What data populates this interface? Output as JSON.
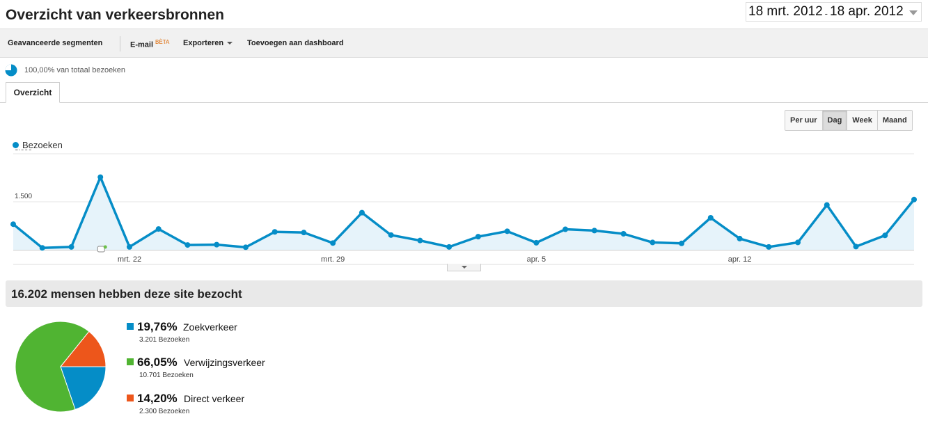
{
  "header": {
    "title": "Overzicht van verkeersbronnen",
    "date_start": "18 mrt. 2012",
    "date_sep": "-",
    "date_end": "18 apr. 2012"
  },
  "toolbar": {
    "segments_label": "Geavanceerde segmenten",
    "email_label": "E-mail",
    "email_badge": "BÈTA",
    "export_label": "Exporteren",
    "dashboard_label": "Toevoegen aan dashboard"
  },
  "segment": {
    "label": "100,00% van totaal bezoeken",
    "color": "#058dc7"
  },
  "tabs": [
    {
      "label": "Overzicht"
    }
  ],
  "granularity": {
    "buttons": [
      {
        "label": "Per uur"
      },
      {
        "label": "Dag"
      },
      {
        "label": "Week"
      },
      {
        "label": "Maand"
      }
    ],
    "active": "Dag"
  },
  "chart_data": {
    "type": "area",
    "series": [
      {
        "name": "Bezoeken",
        "color": "#058dc7",
        "values": [
          800,
          60,
          90,
          2270,
          90,
          650,
          150,
          160,
          80,
          560,
          540,
          210,
          1160,
          460,
          290,
          90,
          410,
          580,
          220,
          640,
          600,
          500,
          230,
          200,
          1000,
          350,
          90,
          230,
          1400,
          100,
          450,
          1570
        ]
      }
    ],
    "x_start_label": "18 mrt.",
    "x_tick_labels": [
      {
        "index": 4,
        "label": "mrt. 22"
      },
      {
        "index": 11,
        "label": "mrt. 29"
      },
      {
        "index": 18,
        "label": "apr. 5"
      },
      {
        "index": 25,
        "label": "apr. 12"
      }
    ],
    "y_ticks": [
      {
        "value": 1500,
        "label": "1.500"
      },
      {
        "value": 3000,
        "label": "3.000"
      }
    ],
    "ylim": [
      0,
      3000
    ],
    "annotation_index": 3,
    "legend_position": "top-left",
    "grid": true
  },
  "summary": {
    "text": "16.202 mensen hebben deze site bezocht"
  },
  "sources": [
    {
      "pct": "19,76%",
      "name": "Zoekverkeer",
      "visits": "3.201 Bezoeken",
      "value": 3201,
      "color": "#058dc7"
    },
    {
      "pct": "66,05%",
      "name": "Verwijzingsverkeer",
      "visits": "10.701 Bezoeken",
      "value": 10701,
      "color": "#50b432"
    },
    {
      "pct": "14,20%",
      "name": "Direct verkeer",
      "visits": "2.300 Bezoeken",
      "value": 2300,
      "color": "#ed561b"
    }
  ],
  "icons": {
    "segment": "pie-segment-icon",
    "date_dropdown": "chevron-down-icon",
    "annotation": "annotation-icon",
    "collapse": "collapse-chart-icon"
  }
}
